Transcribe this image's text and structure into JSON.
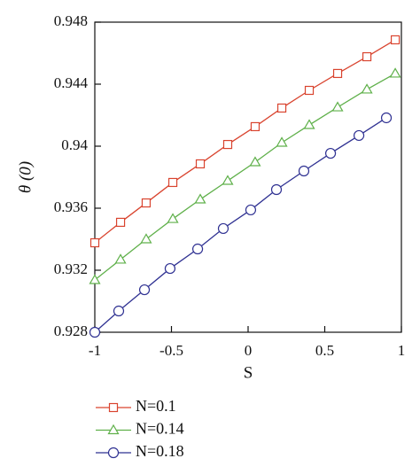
{
  "chart_data": {
    "type": "line",
    "x_label": "S",
    "y_label": "θ (0)",
    "xlim": [
      -1,
      1
    ],
    "xticks": [
      -1,
      -0.5,
      0,
      0.5,
      1
    ],
    "ylim": [
      0.928,
      0.948
    ],
    "yticks": [
      0.928,
      0.932,
      0.936,
      0.94,
      0.944,
      0.948
    ],
    "legend": "bottom",
    "series": [
      {
        "name": "N=0.1",
        "color": "#d9442f",
        "marker": "square",
        "x": [
          -1,
          -0.832,
          -0.665,
          -0.491,
          -0.312,
          -0.133,
          0.046,
          0.22,
          0.399,
          0.584,
          0.775,
          0.96
        ],
        "values": [
          0.93377,
          0.93509,
          0.93634,
          0.93766,
          0.93886,
          0.94011,
          0.94126,
          0.94246,
          0.9436,
          0.94469,
          0.94577,
          0.94686
        ]
      },
      {
        "name": "N=0.14",
        "color": "#5fb04a",
        "marker": "triangle",
        "x": [
          -1,
          -0.832,
          -0.665,
          -0.491,
          -0.312,
          -0.133,
          0.046,
          0.22,
          0.399,
          0.584,
          0.775,
          0.96
        ],
        "values": [
          0.93137,
          0.93269,
          0.934,
          0.93531,
          0.93657,
          0.93777,
          0.93897,
          0.94023,
          0.94137,
          0.94251,
          0.94366,
          0.94469
        ]
      },
      {
        "name": "N=0.18",
        "color": "#2f3192",
        "marker": "circle",
        "x": [
          -1,
          -0.844,
          -0.676,
          -0.509,
          -0.329,
          -0.162,
          0.017,
          0.185,
          0.364,
          0.538,
          0.723,
          0.902
        ],
        "values": [
          0.928,
          0.92937,
          0.93074,
          0.93211,
          0.93337,
          0.93469,
          0.93589,
          0.9372,
          0.9384,
          0.93954,
          0.94069,
          0.94183
        ]
      }
    ]
  }
}
